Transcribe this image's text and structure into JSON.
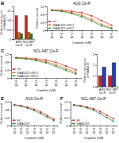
{
  "chart_data": [
    {
      "type": "bar",
      "ylabel": "Relative expression\nof KIAA1429",
      "categories": [
        "AGS\nCis-R",
        "NCL-N87\nCis-R"
      ],
      "series": [
        {
          "color": "#d42020",
          "values": [
            1.0,
            1.0
          ]
        },
        {
          "color": "#d07000",
          "values": [
            0.28,
            0.3
          ]
        },
        {
          "color": "#208030",
          "values": [
            0.22,
            0.22
          ]
        }
      ],
      "ylim": [
        0,
        1.4
      ],
      "yticks": [
        0,
        0.4,
        0.8,
        1.2
      ],
      "annotations": [
        "B"
      ]
    },
    {
      "type": "line",
      "title": "AGS Cis-R",
      "xlabel": "Cisplatin (nM)",
      "ylabel": "Relative survival",
      "categories": [
        "10^0",
        "10^1",
        "10^2",
        "10^3",
        "10^4",
        "10^5",
        "10^6"
      ],
      "series": [
        {
          "name": "ctrl",
          "color": "#d42020",
          "marker": "circle",
          "line_style": "solid",
          "values": [
            1.02,
            1.0,
            0.95,
            0.88,
            0.72,
            0.48,
            0.25
          ]
        },
        {
          "name": "KIAA1429 shR#1",
          "color": "#d07000",
          "marker": "circle",
          "line_style": "solid",
          "values": [
            1.0,
            0.97,
            0.88,
            0.75,
            0.55,
            0.3,
            0.12
          ]
        },
        {
          "name": "KIAA1429 shR#2",
          "color": "#208030",
          "marker": "circle",
          "line_style": "solid",
          "values": [
            1.0,
            0.95,
            0.84,
            0.68,
            0.46,
            0.22,
            0.08
          ]
        }
      ],
      "ylim": [
        0,
        1.2
      ],
      "yticks": [
        0,
        0.4,
        0.8,
        1.2
      ],
      "legend": "lower left"
    },
    {
      "type": "line",
      "title": "NCL-N87 Cis-R",
      "xlabel": "Cisplatin (nM)",
      "ylabel": "Relative survival",
      "categories": [
        "10^0",
        "10^1",
        "10^2",
        "10^3",
        "10^4",
        "10^5",
        "10^6"
      ],
      "series": [
        {
          "name": "ctrl",
          "color": "#d42020",
          "marker": "circle",
          "line_style": "solid",
          "values": [
            1.02,
            1.0,
            0.96,
            0.9,
            0.78,
            0.6,
            0.4
          ]
        },
        {
          "name": "KIAA1429 shR#1",
          "color": "#d07000",
          "marker": "circle",
          "line_style": "solid",
          "values": [
            1.0,
            0.97,
            0.91,
            0.82,
            0.66,
            0.46,
            0.28
          ]
        },
        {
          "name": "KIAA1429 shR#2",
          "color": "#208030",
          "marker": "circle",
          "line_style": "solid",
          "values": [
            1.0,
            0.95,
            0.87,
            0.76,
            0.58,
            0.38,
            0.2
          ]
        }
      ],
      "ylim": [
        0,
        1.2
      ],
      "yticks": [
        0,
        0.4,
        0.8,
        1.2
      ],
      "legend": "lower left",
      "annotations": [
        "C"
      ]
    },
    {
      "type": "bar",
      "ylabel": "Relative expression\nof KIAA1429",
      "categories": [
        "AGS\nCis-R",
        "NCL-N87\nCis-R"
      ],
      "series": [
        {
          "color": "#d42020",
          "values": [
            1.0,
            1.0
          ]
        },
        {
          "color": "#2040c0",
          "values": [
            1.8,
            2.2
          ]
        }
      ],
      "ylim": [
        0,
        3.0
      ],
      "yticks": [
        0,
        1,
        2,
        3
      ]
    },
    {
      "type": "line",
      "title": "AGS Cis-R",
      "xlabel": "Cisplatin (nM)",
      "ylabel": "Relative survival",
      "categories": [
        "10^0",
        "10^1",
        "10^2",
        "10^3",
        "10^4",
        "10^5",
        "10^6"
      ],
      "series": [
        {
          "name": "EV",
          "color": "#d42020",
          "marker": "circle",
          "line_style": "solid",
          "values": [
            1.05,
            1.0,
            0.92,
            0.82,
            0.68,
            0.5,
            0.32
          ]
        },
        {
          "name": "KIAA1429",
          "color": "#208030",
          "marker": "circle",
          "line_style": "solid",
          "values": [
            1.02,
            0.97,
            0.88,
            0.76,
            0.6,
            0.42,
            0.25
          ]
        }
      ],
      "ylim": [
        0,
        1.2
      ],
      "yticks": [
        0,
        0.4,
        0.8,
        1.2
      ],
      "legend": "lower left",
      "annotations": [
        "E"
      ]
    },
    {
      "type": "line",
      "title": "NCL-N87 Cis-R",
      "xlabel": "Cisplatin (nM)",
      "ylabel": "Relative survival",
      "categories": [
        "10^0",
        "10^1",
        "10^2",
        "10^3",
        "10^4",
        "10^5",
        "10^6"
      ],
      "series": [
        {
          "name": "EV",
          "color": "#d42020",
          "marker": "circle",
          "line_style": "solid",
          "values": [
            1.05,
            1.0,
            0.93,
            0.84,
            0.7,
            0.52,
            0.34
          ]
        },
        {
          "name": "KIAA1429",
          "color": "#208030",
          "marker": "circle",
          "line_style": "solid",
          "values": [
            1.02,
            0.97,
            0.89,
            0.77,
            0.6,
            0.4,
            0.22
          ]
        }
      ],
      "ylim": [
        0,
        1.2
      ],
      "yticks": [
        0,
        0.4,
        0.8,
        1.2
      ],
      "legend": "lower left",
      "annotations": [
        "F"
      ]
    }
  ]
}
